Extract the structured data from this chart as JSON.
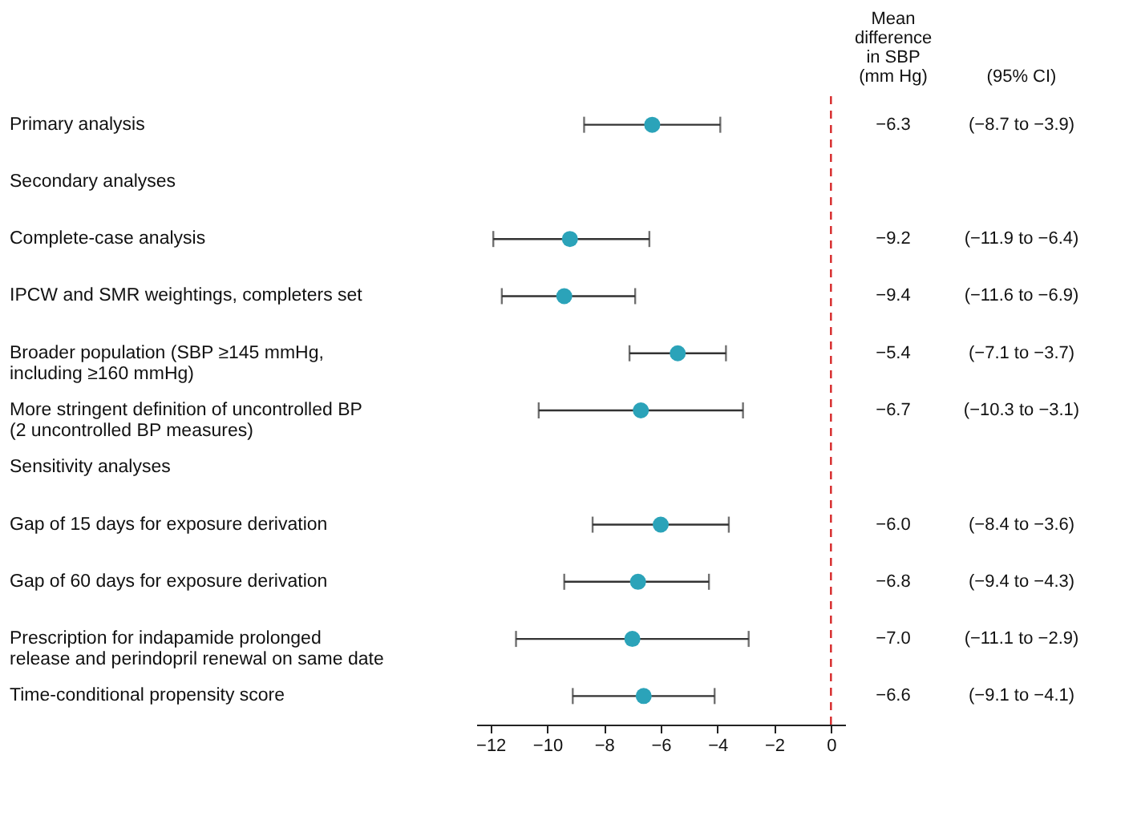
{
  "chart_data": {
    "type": "scatter",
    "orientation": "horizontal",
    "marker": "circle",
    "color": "#2ba3b9",
    "categories": [
      "Primary analysis",
      "Secondary analyses",
      "Complete-case analysis",
      "IPCW and SMR weightings, completers set",
      "Broader population (SBP ≥145 mmHg,\nincluding ≥160 mmHg)",
      "More stringent definition of uncontrolled BP\n(2 uncontrolled BP measures)",
      "Sensitivity analyses",
      "Gap of 15 days for exposure derivation",
      "Gap of 60 days for exposure derivation",
      "Prescription for indapamide prolonged\nrelease and perindopril renewal on same date",
      "Time-conditional propensity score"
    ],
    "values": [
      -6.3,
      null,
      -9.2,
      -9.4,
      -5.4,
      -6.7,
      null,
      -6.0,
      -6.8,
      -7.0,
      -6.6
    ],
    "errors": [
      [
        -8.7,
        -3.9
      ],
      null,
      [
        -11.9,
        -6.4
      ],
      [
        -11.6,
        -6.9
      ],
      [
        -7.1,
        -3.7
      ],
      [
        -10.3,
        -3.1
      ],
      null,
      [
        -8.4,
        -3.6
      ],
      [
        -9.4,
        -4.3
      ],
      [
        -11.1,
        -2.9
      ],
      [
        -9.1,
        -4.1
      ]
    ],
    "value_labels": [
      "−6.3",
      null,
      "−9.2",
      "−9.4",
      "−5.4",
      "−6.7",
      null,
      "−6.0",
      "−6.8",
      "−7.0",
      "−6.6"
    ],
    "xlim": [
      -12.5,
      0.5
    ],
    "xticks": [
      {
        "value": -12,
        "label": "−12"
      },
      {
        "value": -10,
        "label": "−10"
      },
      {
        "value": -8,
        "label": "−8"
      },
      {
        "value": -6,
        "label": "−6"
      },
      {
        "value": -4,
        "label": "−4"
      },
      {
        "value": -2,
        "label": "−2"
      },
      0
    ],
    "ref_lines": [
      {
        "axis": "x",
        "value": 0,
        "color": "#d62728",
        "line_style": "dashed"
      }
    ],
    "annotations": [
      "Mean\ndifference\nin SBP\n(mm Hg)",
      "(95% CI)",
      "(−8.7 to −3.9)",
      "(−11.9 to −6.4)",
      "(−11.6 to −6.9)",
      "(−7.1 to −3.7)",
      "(−10.3 to −3.1)",
      "(−8.4 to −3.6)",
      "(−9.4 to −4.3)",
      "(−11.1 to −2.9)",
      "(−9.1 to −4.1)"
    ]
  }
}
